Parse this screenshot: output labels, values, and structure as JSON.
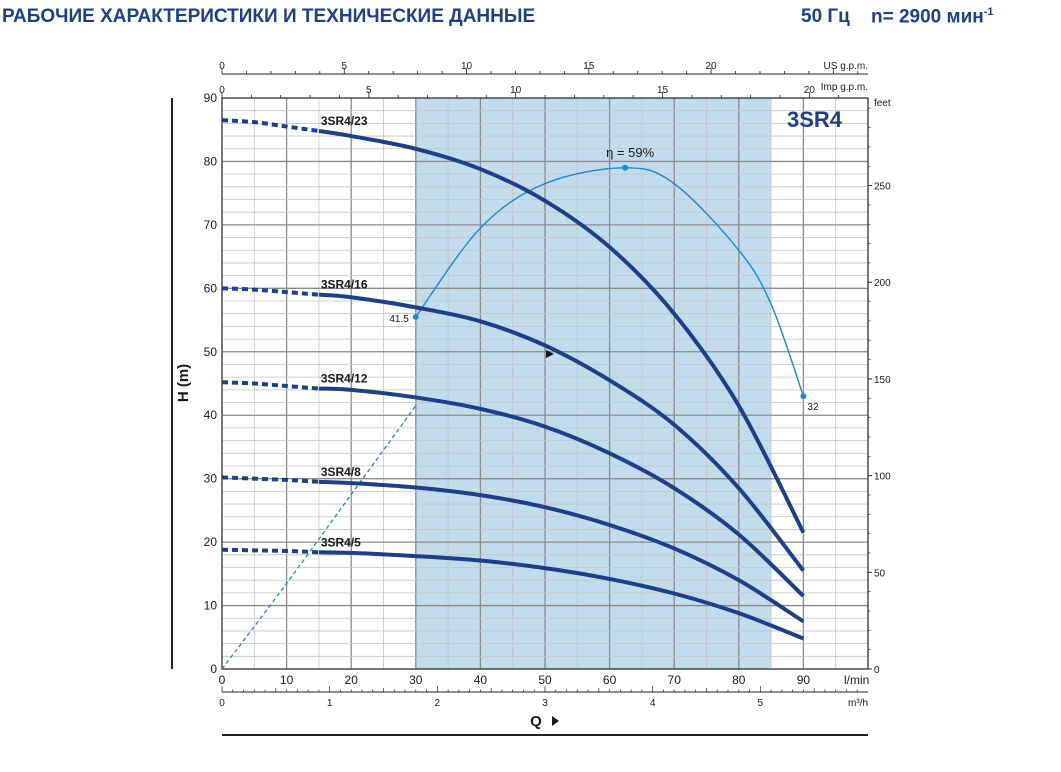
{
  "header": {
    "title": "РАБОЧИЕ ХАРАКТЕРИСТИКИ И ТЕХНИЧЕСКИЕ ДАННЫЕ",
    "frequency": "50 Гц",
    "speed": "n= 2900 мин",
    "speed_exp": "-1"
  },
  "chart_data": {
    "type": "line",
    "model_label": "3SR4",
    "xlabel": "Q",
    "ylabel": "H (m)",
    "x_unit_main": "l/min",
    "x_unit_m3h": "m³/h",
    "y_unit_right": "feet",
    "top_unit_us": "US g.p.m.",
    "top_unit_imp": "Imp g.p.m.",
    "xlim": [
      0,
      100
    ],
    "ylim": [
      0,
      90
    ],
    "grid": true,
    "x_ticks": [
      0,
      10,
      20,
      30,
      40,
      50,
      60,
      70,
      80,
      90
    ],
    "y_ticks": [
      0,
      10,
      20,
      30,
      40,
      50,
      60,
      70,
      80,
      90
    ],
    "m3h_ticks": [
      0,
      1,
      2,
      3,
      4,
      5
    ],
    "feet_ticks": [
      0,
      50,
      100,
      150,
      200,
      250
    ],
    "us_gpm_ticks": [
      0,
      5,
      10,
      15,
      20
    ],
    "imp_gpm_ticks": [
      0,
      5,
      10,
      15,
      20
    ],
    "recommended_range": [
      30,
      85
    ],
    "series": [
      {
        "name": "3SR4/23",
        "dashed": [
          [
            0,
            86.5
          ],
          [
            5,
            86.2
          ],
          [
            10,
            85.5
          ],
          [
            15,
            84.8
          ]
        ],
        "points": [
          [
            15,
            84.8
          ],
          [
            20,
            84.0
          ],
          [
            30,
            82.0
          ],
          [
            40,
            78.8
          ],
          [
            50,
            73.8
          ],
          [
            60,
            66.5
          ],
          [
            70,
            56.0
          ],
          [
            80,
            41.5
          ],
          [
            90,
            21.5
          ]
        ]
      },
      {
        "name": "3SR4/16",
        "dashed": [
          [
            0,
            60.0
          ],
          [
            5,
            59.8
          ],
          [
            10,
            59.4
          ],
          [
            15,
            59.0
          ]
        ],
        "points": [
          [
            15,
            59.0
          ],
          [
            20,
            58.6
          ],
          [
            30,
            57.0
          ],
          [
            40,
            54.8
          ],
          [
            50,
            51.0
          ],
          [
            60,
            45.5
          ],
          [
            70,
            38.5
          ],
          [
            80,
            28.5
          ],
          [
            90,
            15.5
          ]
        ]
      },
      {
        "name": "3SR4/12",
        "dashed": [
          [
            0,
            45.2
          ],
          [
            5,
            45.0
          ],
          [
            10,
            44.6
          ],
          [
            15,
            44.2
          ]
        ],
        "points": [
          [
            15,
            44.2
          ],
          [
            20,
            44.0
          ],
          [
            30,
            42.8
          ],
          [
            40,
            41.0
          ],
          [
            50,
            38.2
          ],
          [
            60,
            34.0
          ],
          [
            70,
            28.5
          ],
          [
            80,
            21.2
          ],
          [
            90,
            11.5
          ]
        ]
      },
      {
        "name": "3SR4/8",
        "dashed": [
          [
            0,
            30.2
          ],
          [
            5,
            30.0
          ],
          [
            10,
            29.8
          ],
          [
            15,
            29.5
          ]
        ],
        "points": [
          [
            15,
            29.5
          ],
          [
            20,
            29.3
          ],
          [
            30,
            28.6
          ],
          [
            40,
            27.4
          ],
          [
            50,
            25.5
          ],
          [
            60,
            22.7
          ],
          [
            70,
            19.0
          ],
          [
            80,
            14.0
          ],
          [
            90,
            7.5
          ]
        ]
      },
      {
        "name": "3SR4/5",
        "dashed": [
          [
            0,
            18.8
          ],
          [
            5,
            18.7
          ],
          [
            10,
            18.6
          ],
          [
            15,
            18.4
          ]
        ],
        "points": [
          [
            15,
            18.4
          ],
          [
            20,
            18.3
          ],
          [
            30,
            17.8
          ],
          [
            40,
            17.1
          ],
          [
            50,
            15.9
          ],
          [
            60,
            14.2
          ],
          [
            70,
            11.9
          ],
          [
            80,
            8.8
          ],
          [
            90,
            4.8
          ]
        ]
      }
    ],
    "efficiency": {
      "label": "η = 59%",
      "dashed": [
        [
          0,
          0
        ],
        [
          10,
          13.5
        ],
        [
          20,
          27.5
        ],
        [
          30,
          41.5
        ]
      ],
      "points": [
        [
          30,
          55.5
        ],
        [
          40,
          69.5
        ],
        [
          50,
          76.5
        ],
        [
          62.4,
          79.0
        ],
        [
          70,
          76.5
        ],
        [
          80,
          66.0
        ],
        [
          85,
          57.5
        ],
        [
          90,
          43.0
        ]
      ],
      "markers": [
        [
          30,
          55.5
        ],
        [
          62.4,
          79.0
        ],
        [
          90,
          43.0
        ]
      ],
      "start_label": "41.5",
      "end_label": "32"
    },
    "colors": {
      "curve": "#1f3f86",
      "efficiency": "#1e88c8",
      "range_fill": "#c2dceb",
      "grid": "#9a9a9a",
      "title": "#1f3f86"
    }
  }
}
